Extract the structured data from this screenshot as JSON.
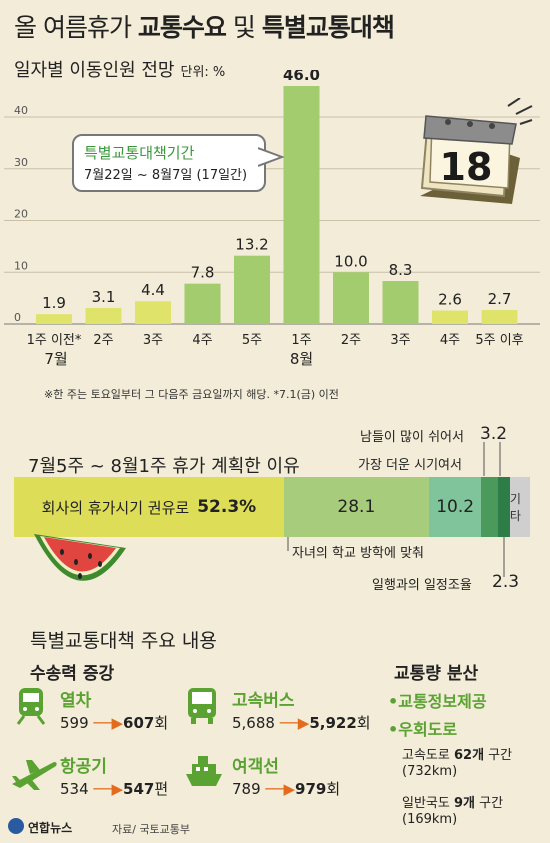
{
  "title": {
    "pre": "올 여름휴가 ",
    "bold1": "교통수요",
    "mid": " 및 ",
    "bold2": "특별교통대책"
  },
  "subtitle": {
    "text": "일자별 이동인원 전망",
    "unit": "단위: %"
  },
  "callout": {
    "title": "특별교통대책기간",
    "period": "7월22일 ~ 8월7일 (17일간)"
  },
  "calendar": {
    "day": "18"
  },
  "note": "※한 주는 토요일부터 그 다음주 금요일까지 해당. *7.1(금) 이전",
  "colors": {
    "bar_light": "#e0e36a",
    "bar_green": "#a3cc6e",
    "seg1": "#dedd58",
    "seg2": "#a7cc7b",
    "seg3": "#7fc49a",
    "seg4": "#4b9a5c",
    "seg5": "#2e7d47",
    "seg6": "#cfcfcf",
    "accent": "#5aa232",
    "arrow": "#e36b1e"
  },
  "chart_data": [
    {
      "type": "bar",
      "categories": [
        "1주 이전*",
        "2주",
        "3주",
        "4주",
        "5주",
        "1주",
        "2주",
        "3주",
        "4주",
        "5주 이후"
      ],
      "month_labels": [
        "7월",
        "8월"
      ],
      "values": [
        1.9,
        3.1,
        4.4,
        7.8,
        13.2,
        46.0,
        10.0,
        8.3,
        2.6,
        2.7
      ],
      "value_labels": [
        "1.9",
        "3.1",
        "4.4",
        "7.8",
        "13.2",
        "46.0",
        "10.0",
        "8.3",
        "2.6",
        "2.7"
      ],
      "highlight": [
        false,
        false,
        false,
        true,
        true,
        true,
        true,
        true,
        false,
        false
      ],
      "yticks": [
        0,
        10,
        20,
        30,
        40
      ],
      "ylim": [
        0,
        46
      ],
      "grid": true
    },
    {
      "type": "bar",
      "title": "7월5주 ~ 8월1주 휴가 계획한 이유",
      "segments": [
        {
          "label": "회사의 휴가시기 권유로",
          "value": 52.3,
          "value_label": "52.3%"
        },
        {
          "label": "자녀의 학교 방학에 맞춰",
          "value": 28.1,
          "value_label": "28.1"
        },
        {
          "label": "가장 더운 시기여서",
          "value": 10.2,
          "value_label": "10.2"
        },
        {
          "label": "남들이 많이 쉬어서",
          "value": 3.2,
          "value_label": "3.2"
        },
        {
          "label": "일행과의 일정조율",
          "value": 2.3,
          "value_label": "2.3"
        },
        {
          "label": "기타",
          "value": 3.9,
          "value_label": ""
        }
      ]
    }
  ],
  "measures": {
    "title": "특별교통대책 주요 내용",
    "capacity_title": "수송력 증강",
    "items": [
      {
        "name": "열차",
        "from": "599",
        "to": "607",
        "unit": "회",
        "icon": "train-icon"
      },
      {
        "name": "고속버스",
        "from": "5,688",
        "to": "5,922",
        "unit": "회",
        "icon": "bus-icon"
      },
      {
        "name": "항공기",
        "from": "534",
        "to": "547",
        "unit": "편",
        "icon": "airplane-icon"
      },
      {
        "name": "여객선",
        "from": "789",
        "to": "979",
        "unit": "회",
        "icon": "ship-icon"
      }
    ],
    "distribution_title": "교통량 분산",
    "dist_items": [
      "•교통정보제공",
      "•우회도로"
    ],
    "highway": {
      "pre": "고속도로 ",
      "count": "62개",
      "post": " 구간",
      "km": "(732km)"
    },
    "national": {
      "pre": "일반국도 ",
      "count": "9개",
      "post": " 구간",
      "km": "(169km)"
    }
  },
  "footer": {
    "logo": "연합뉴스",
    "source": "자료/ 국토교통부"
  }
}
